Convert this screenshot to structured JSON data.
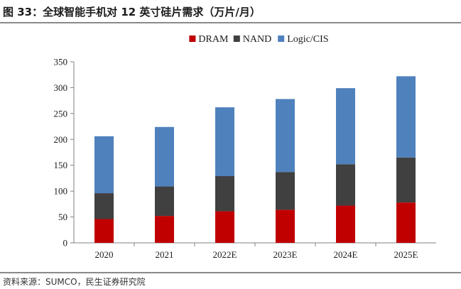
{
  "figure": {
    "title": "图 33：全球智能手机对 12 英寸硅片需求（万片/月）",
    "source": "资料来源：SUMCO，民生证券研究院"
  },
  "chart_data": {
    "type": "bar",
    "stacked": true,
    "categories": [
      "2020",
      "2021",
      "2022E",
      "2023E",
      "2024E",
      "2025E"
    ],
    "series": [
      {
        "name": "DRAM",
        "color": "#c00000",
        "values": [
          46,
          52,
          61,
          64,
          72,
          78
        ]
      },
      {
        "name": "NAND",
        "color": "#404040",
        "values": [
          50,
          57,
          68,
          73,
          80,
          87
        ]
      },
      {
        "name": "Logic/CIS",
        "color": "#4f81bd",
        "values": [
          110,
          115,
          133,
          141,
          147,
          157
        ]
      }
    ],
    "ylim": [
      0,
      350
    ],
    "yticks": [
      0,
      50,
      100,
      150,
      200,
      250,
      300,
      350
    ],
    "grid": false,
    "legend_position": "top-center"
  }
}
